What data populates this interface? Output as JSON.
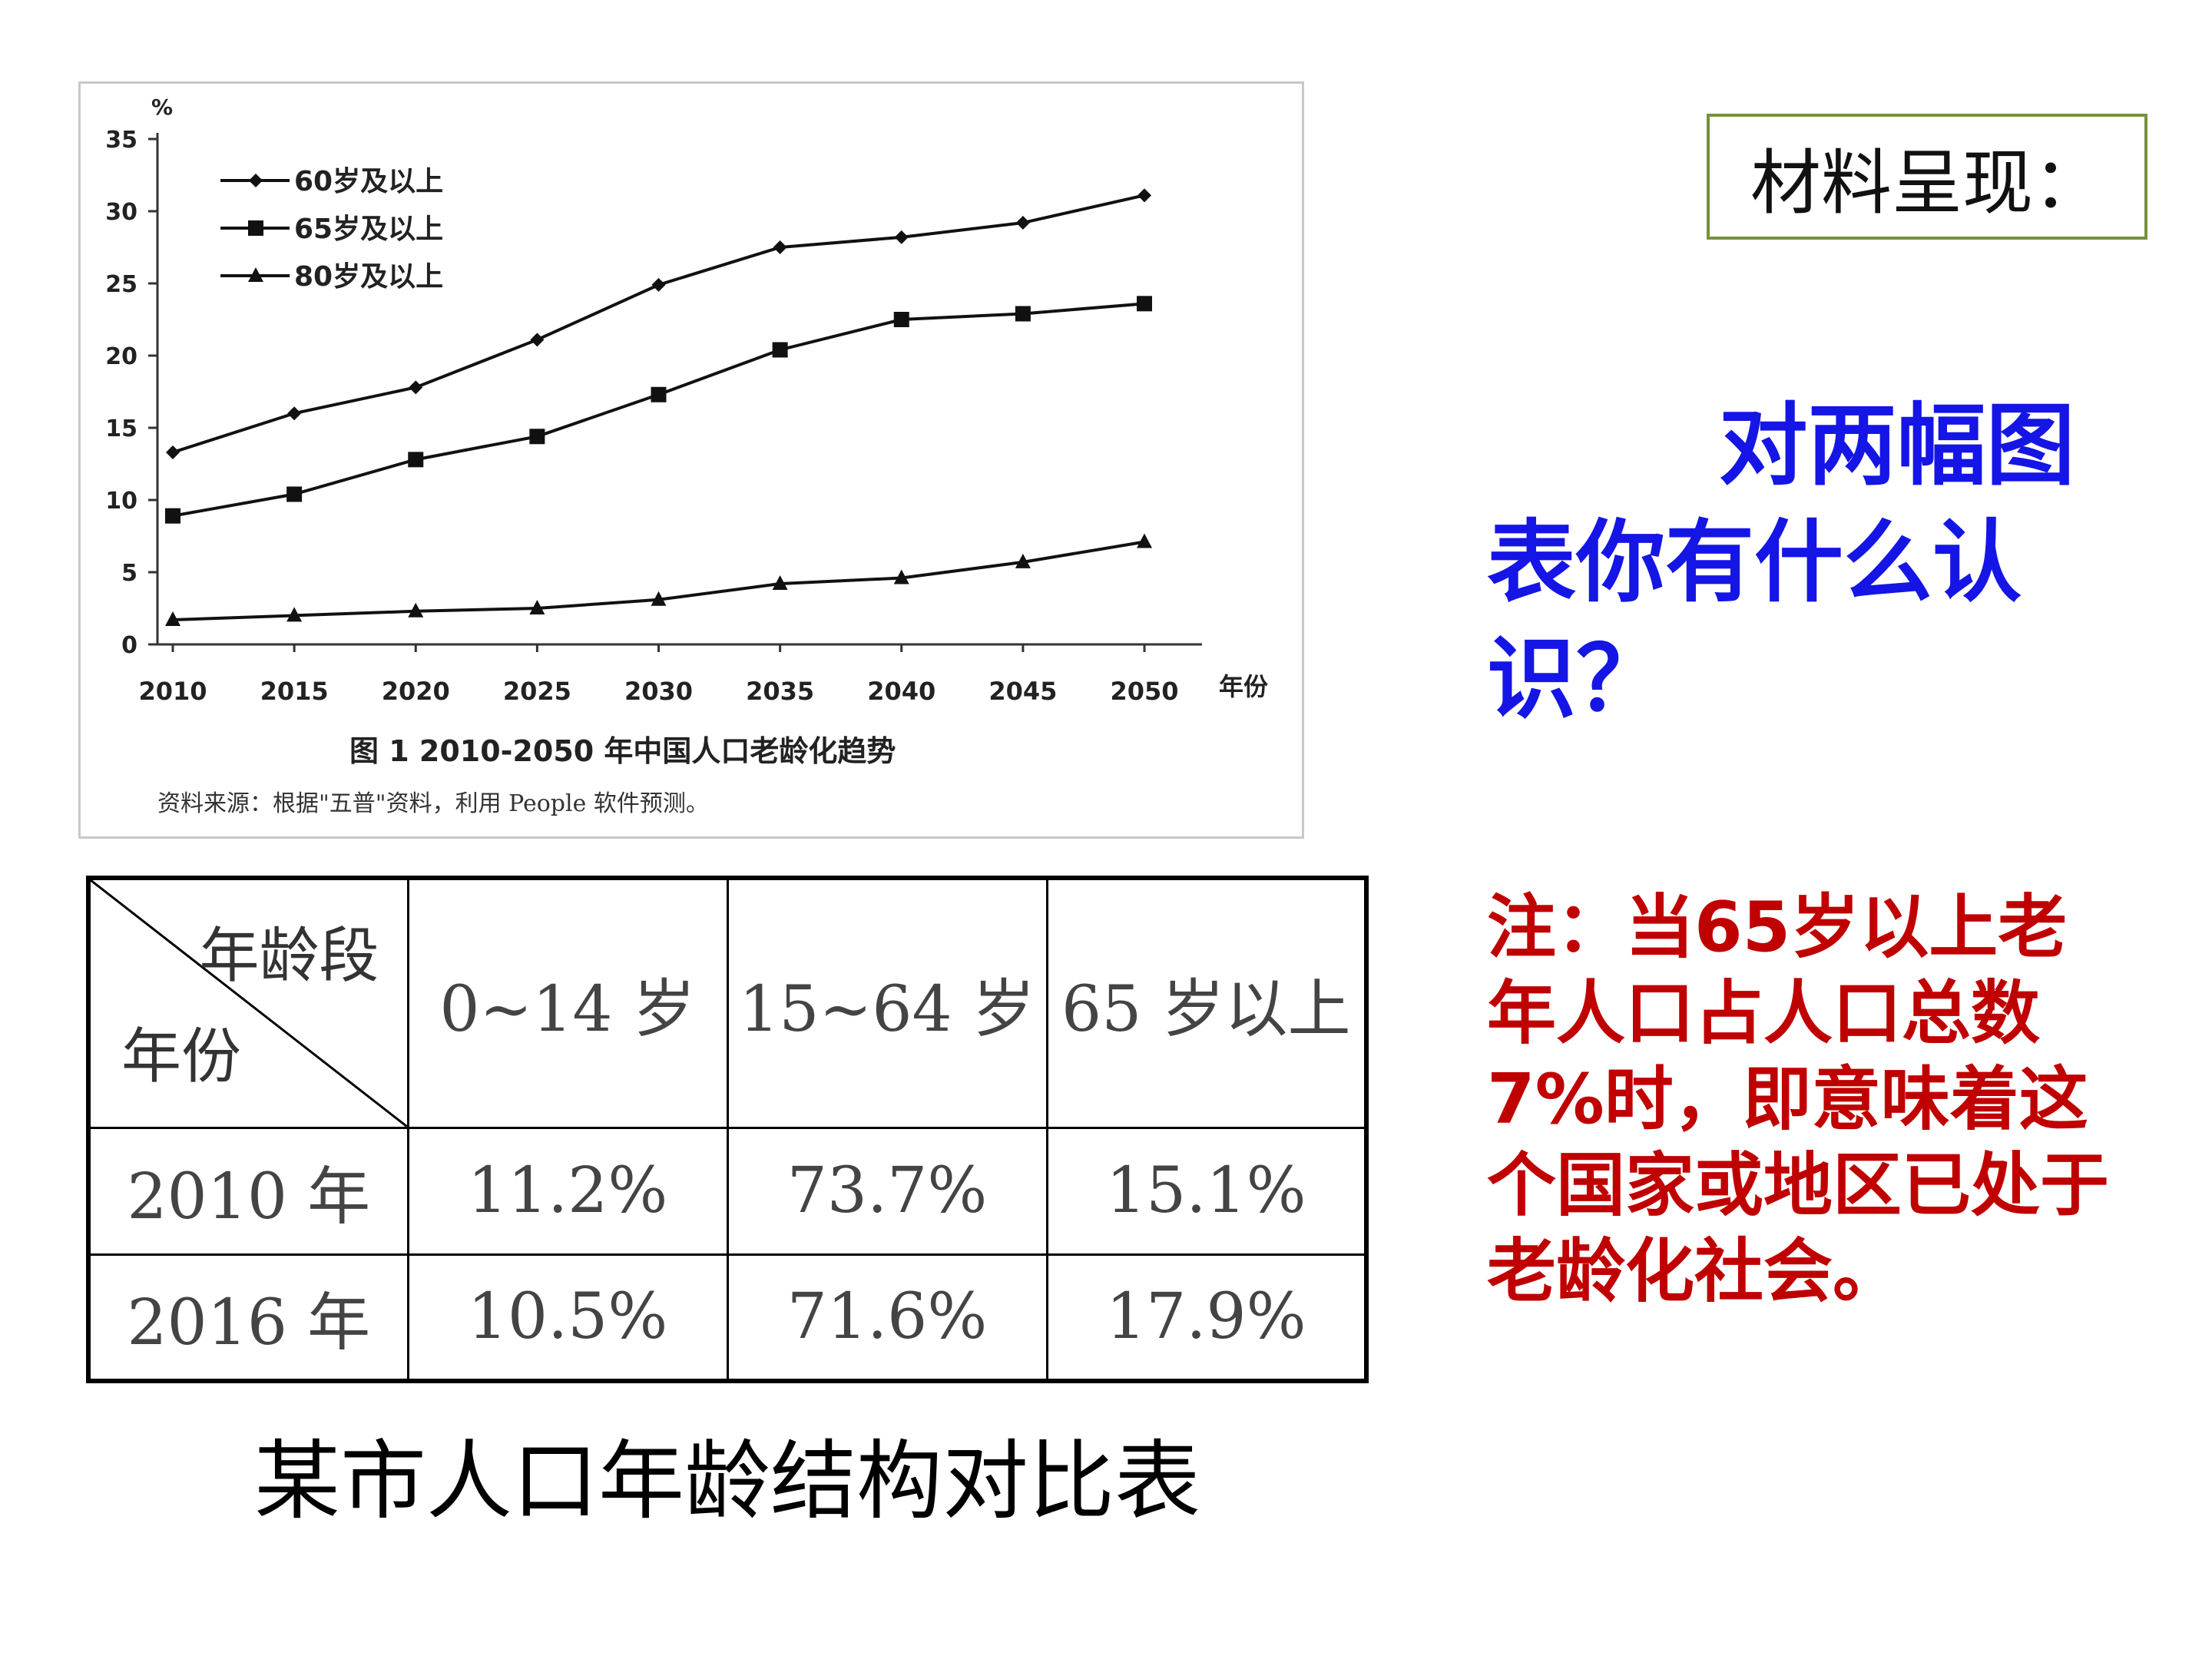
{
  "chart_data": {
    "type": "line",
    "y_unit": "%",
    "x_unit": "年份",
    "x": [
      2010,
      2015,
      2020,
      2025,
      2030,
      2035,
      2040,
      2045,
      2050
    ],
    "y_ticks": [
      0,
      5,
      10,
      15,
      20,
      25,
      30,
      35
    ],
    "ylim": [
      0,
      35
    ],
    "series": [
      {
        "name": "60岁及以上",
        "marker": "diamond",
        "values": [
          13.3,
          16.0,
          17.8,
          21.1,
          24.9,
          27.5,
          28.2,
          29.2,
          31.1
        ]
      },
      {
        "name": "65岁及以上",
        "marker": "square",
        "values": [
          8.9,
          10.4,
          12.8,
          14.4,
          17.3,
          20.4,
          22.5,
          22.9,
          23.6
        ]
      },
      {
        "name": "80岁及以上",
        "marker": "triangle",
        "values": [
          1.7,
          2.0,
          2.3,
          2.5,
          3.1,
          4.2,
          4.6,
          5.7,
          7.1
        ]
      }
    ],
    "title": "图 1    2010-2050 年中国人口老龄化趋势",
    "source": "资料来源：根据\"五普\"资料，利用 People 软件预测。",
    "legend_position": "top-left",
    "grid": false
  },
  "material_label": "材料呈现：",
  "question": "对两幅图表你有什么认识？",
  "note": "注：当65岁以上老年人口占人口总数7%时，即意味着这个国家或地区已处于老龄化社会。",
  "table": {
    "corner_top": "年龄段",
    "corner_bottom": "年份",
    "columns": [
      "0~14 岁",
      "15~64 岁",
      "65 岁以上"
    ],
    "rows": [
      {
        "year": "2010 年",
        "values": [
          "11.2%",
          "73.7%",
          "15.1%"
        ]
      },
      {
        "year": "2016 年",
        "values": [
          "10.5%",
          "71.6%",
          "17.9%"
        ]
      }
    ],
    "caption": "某市人口年龄结构对比表"
  }
}
